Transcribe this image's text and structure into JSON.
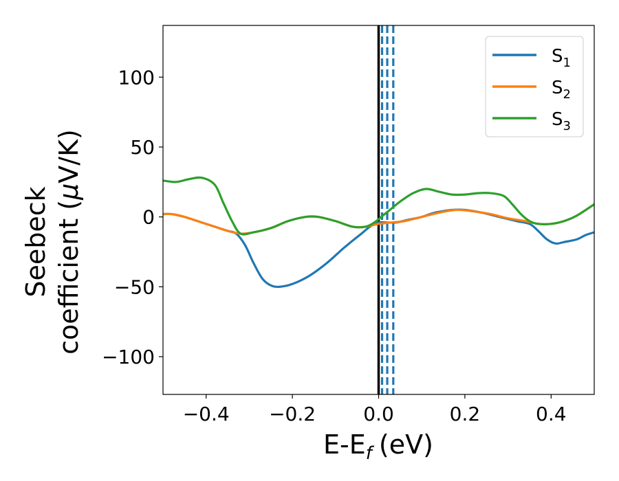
{
  "chart_data": {
    "type": "line",
    "xlabel": "E-E",
    "xlabel_sub": "f",
    "xlabel_unit": "(eV)",
    "ylabel_line1": "Seebeck",
    "ylabel_line2_pre": "coefficient  (",
    "ylabel_line2_mu": "μ",
    "ylabel_line2_post": "V/K)",
    "xlim": [
      -0.5,
      0.5
    ],
    "ylim": [
      -127,
      137
    ],
    "xticks": [
      -0.4,
      -0.2,
      0.0,
      0.2,
      0.4
    ],
    "xtick_labels": [
      "−0.4",
      "−0.2",
      "0.0",
      "0.2",
      "0.4"
    ],
    "yticks": [
      -100,
      -50,
      0,
      50,
      100
    ],
    "ytick_labels": [
      "−100",
      "−50",
      "0",
      "50",
      "100"
    ],
    "grid": false,
    "legend_position": "top-right",
    "vlines": [
      {
        "x": 0.0,
        "style": "solid",
        "color": "#000000"
      },
      {
        "x": 0.008,
        "style": "dashed",
        "color": "#1f77b4"
      },
      {
        "x": 0.02,
        "style": "dashed",
        "color": "#1f77b4"
      },
      {
        "x": 0.034,
        "style": "dashed",
        "color": "#1f77b4"
      }
    ],
    "series": [
      {
        "name": "S",
        "name_sub": "1",
        "color": "#1f77b4",
        "points": [
          [
            -0.5,
            2
          ],
          [
            -0.48,
            2
          ],
          [
            -0.45,
            0
          ],
          [
            -0.42,
            -3
          ],
          [
            -0.38,
            -7
          ],
          [
            -0.35,
            -10
          ],
          [
            -0.33,
            -12
          ],
          [
            -0.31,
            -20
          ],
          [
            -0.29,
            -33
          ],
          [
            -0.27,
            -44
          ],
          [
            -0.25,
            -49
          ],
          [
            -0.23,
            -50
          ],
          [
            -0.2,
            -48
          ],
          [
            -0.16,
            -42
          ],
          [
            -0.12,
            -33
          ],
          [
            -0.08,
            -22
          ],
          [
            -0.04,
            -12
          ],
          [
            -0.02,
            -7
          ],
          [
            0.0,
            -4
          ],
          [
            0.02,
            -4
          ],
          [
            0.04,
            -4
          ],
          [
            0.07,
            -2
          ],
          [
            0.1,
            0
          ],
          [
            0.13,
            3
          ],
          [
            0.17,
            5
          ],
          [
            0.2,
            5
          ],
          [
            0.24,
            3
          ],
          [
            0.28,
            0
          ],
          [
            0.32,
            -3
          ],
          [
            0.35,
            -5
          ],
          [
            0.37,
            -10
          ],
          [
            0.39,
            -16
          ],
          [
            0.41,
            -19
          ],
          [
            0.43,
            -18
          ],
          [
            0.46,
            -16
          ],
          [
            0.48,
            -13
          ],
          [
            0.5,
            -11
          ]
        ]
      },
      {
        "name": "S",
        "name_sub": "2",
        "color": "#ff7f0e",
        "points": [
          [
            -0.5,
            2
          ],
          [
            -0.48,
            2
          ],
          [
            -0.45,
            0
          ],
          [
            -0.42,
            -3
          ],
          [
            -0.38,
            -7
          ],
          [
            -0.35,
            -10
          ],
          [
            -0.32,
            -12
          ],
          [
            -0.29,
            -11
          ],
          [
            -0.25,
            -8
          ],
          [
            -0.21,
            -3
          ],
          [
            -0.17,
            0
          ],
          [
            -0.14,
            0
          ],
          [
            -0.1,
            -3
          ],
          [
            -0.06,
            -7
          ],
          [
            -0.03,
            -7
          ],
          [
            0.0,
            -5
          ],
          [
            0.03,
            -4
          ],
          [
            0.06,
            -3
          ],
          [
            0.1,
            0
          ],
          [
            0.14,
            3
          ],
          [
            0.18,
            5
          ],
          [
            0.22,
            4
          ],
          [
            0.26,
            2
          ],
          [
            0.3,
            -1
          ],
          [
            0.34,
            -3
          ],
          [
            0.37,
            -5
          ],
          [
            0.4,
            -5
          ],
          [
            0.43,
            -3
          ],
          [
            0.46,
            1
          ],
          [
            0.5,
            9
          ]
        ]
      },
      {
        "name": "S",
        "name_sub": "3",
        "color": "#2ca02c",
        "points": [
          [
            -0.5,
            26
          ],
          [
            -0.47,
            25
          ],
          [
            -0.44,
            27
          ],
          [
            -0.41,
            28
          ],
          [
            -0.38,
            23
          ],
          [
            -0.36,
            10
          ],
          [
            -0.34,
            -3
          ],
          [
            -0.32,
            -12
          ],
          [
            -0.29,
            -11
          ],
          [
            -0.25,
            -8
          ],
          [
            -0.21,
            -3
          ],
          [
            -0.17,
            0
          ],
          [
            -0.14,
            0
          ],
          [
            -0.1,
            -3
          ],
          [
            -0.06,
            -7
          ],
          [
            -0.03,
            -7
          ],
          [
            -0.01,
            -4
          ],
          [
            0.01,
            1
          ],
          [
            0.03,
            6
          ],
          [
            0.05,
            11
          ],
          [
            0.08,
            17
          ],
          [
            0.11,
            20
          ],
          [
            0.14,
            18
          ],
          [
            0.17,
            16
          ],
          [
            0.2,
            16
          ],
          [
            0.23,
            17
          ],
          [
            0.26,
            17
          ],
          [
            0.29,
            15
          ],
          [
            0.31,
            9
          ],
          [
            0.33,
            2
          ],
          [
            0.35,
            -3
          ],
          [
            0.37,
            -5
          ],
          [
            0.4,
            -5
          ],
          [
            0.43,
            -3
          ],
          [
            0.46,
            1
          ],
          [
            0.5,
            9
          ]
        ]
      }
    ]
  }
}
